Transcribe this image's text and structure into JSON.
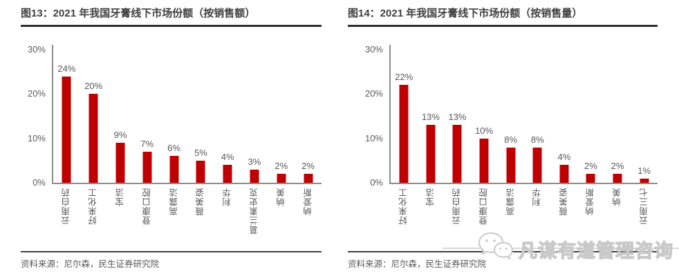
{
  "panels": [
    {
      "title": "图13：2021 年我国牙膏线下市场份额（按销售额）",
      "source": "资料来源：尼尔森，民生证券研究院"
    },
    {
      "title": "图14：2021 年我国牙膏线下市场份额（按销售量）",
      "source": "资料来源：尼尔森，民生证券研究院"
    }
  ],
  "chart_data": [
    {
      "type": "bar",
      "title": "图13：2021 年我国牙膏线下市场份额（按销售额）",
      "categories": [
        "云南白药",
        "好来化工",
        "宝洁",
        "登康口腔",
        "高露洁",
        "薇美姿",
        "利华",
        "葛兰素史克",
        "纳美",
        "纳爱斯"
      ],
      "values": [
        24,
        20,
        9,
        7,
        6,
        5,
        4,
        3,
        2,
        2
      ],
      "value_labels": [
        "24%",
        "20%",
        "9%",
        "7%",
        "6%",
        "5%",
        "4%",
        "3%",
        "2%",
        "2%"
      ],
      "yticks": [
        {
          "label": "0%",
          "value": 0
        },
        {
          "label": "10%",
          "value": 10
        },
        {
          "label": "20%",
          "value": 20
        },
        {
          "label": "30%",
          "value": 30
        }
      ],
      "ylim": [
        0,
        30
      ],
      "grid": false,
      "legend": false,
      "xlabel": "",
      "ylabel": ""
    },
    {
      "type": "bar",
      "title": "图14：2021 年我国牙膏线下市场份额（按销售量）",
      "categories": [
        "好来化工",
        "宝洁",
        "云南白药",
        "登康口腔",
        "高露洁",
        "利华",
        "薇美姿",
        "纳爱斯",
        "纳美",
        "云南三七"
      ],
      "values": [
        22,
        13,
        13,
        10,
        8,
        8,
        4,
        2,
        2,
        1
      ],
      "value_labels": [
        "22%",
        "13%",
        "13%",
        "10%",
        "8%",
        "8%",
        "4%",
        "2%",
        "2%",
        "1%"
      ],
      "yticks": [
        {
          "label": "0%",
          "value": 0
        },
        {
          "label": "10%",
          "value": 10
        },
        {
          "label": "20%",
          "value": 20
        },
        {
          "label": "30%",
          "value": 30
        }
      ],
      "ylim": [
        0,
        30
      ],
      "grid": false,
      "legend": false,
      "xlabel": "",
      "ylabel": ""
    }
  ],
  "watermark": {
    "text": "凡谋有道管理咨询",
    "icon": "wechat-icon"
  },
  "colors": {
    "bar": "#c00000",
    "title_text": "#3f3f3f",
    "divider": "#3f3f3f",
    "axis_line": "#8c8c8c",
    "label_text": "#595959",
    "watermark_outline": "#c9c9c9"
  }
}
